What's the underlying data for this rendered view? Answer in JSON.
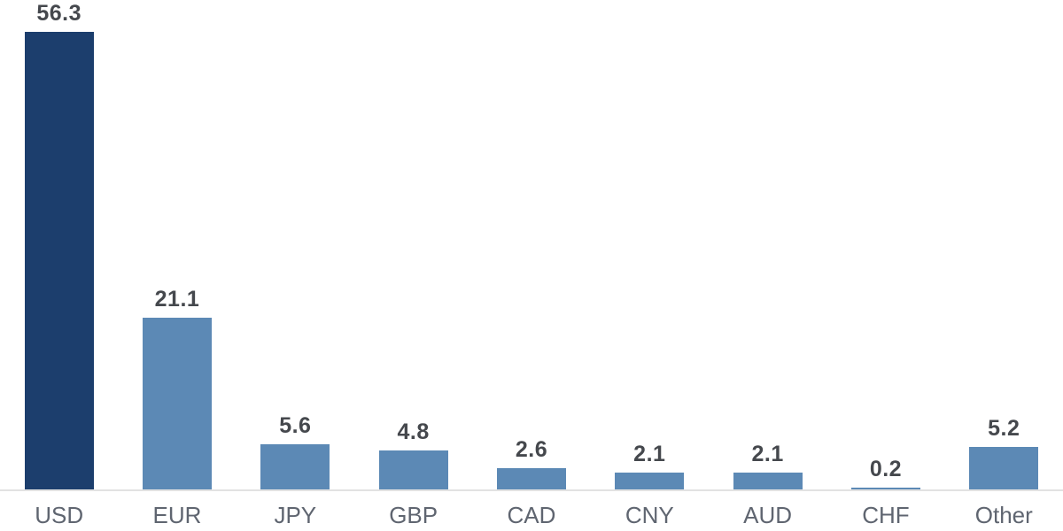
{
  "chart_data": {
    "type": "bar",
    "categories": [
      "USD",
      "EUR",
      "JPY",
      "GBP",
      "CAD",
      "CNY",
      "AUD",
      "CHF",
      "Other"
    ],
    "values": [
      56.3,
      21.1,
      5.6,
      4.8,
      2.6,
      2.1,
      2.1,
      0.2,
      5.2
    ],
    "value_labels": [
      "56.3",
      "21.1",
      "5.6",
      "4.8",
      "2.6",
      "2.1",
      "2.1",
      "0.2",
      "5.2"
    ],
    "title": "",
    "xlabel": "",
    "ylabel": "",
    "ylim": [
      0,
      58
    ],
    "grid": false,
    "legend": false,
    "value_labels_shown": true,
    "colors": {
      "highlight_index": 0,
      "highlight_bar": "#1c3e6d",
      "default_bar": "#5c89b5",
      "axis_line": "#e2e2e2",
      "value_label_text": "#45484d",
      "category_label_text": "#5f6570",
      "background": "#ffffff"
    }
  }
}
